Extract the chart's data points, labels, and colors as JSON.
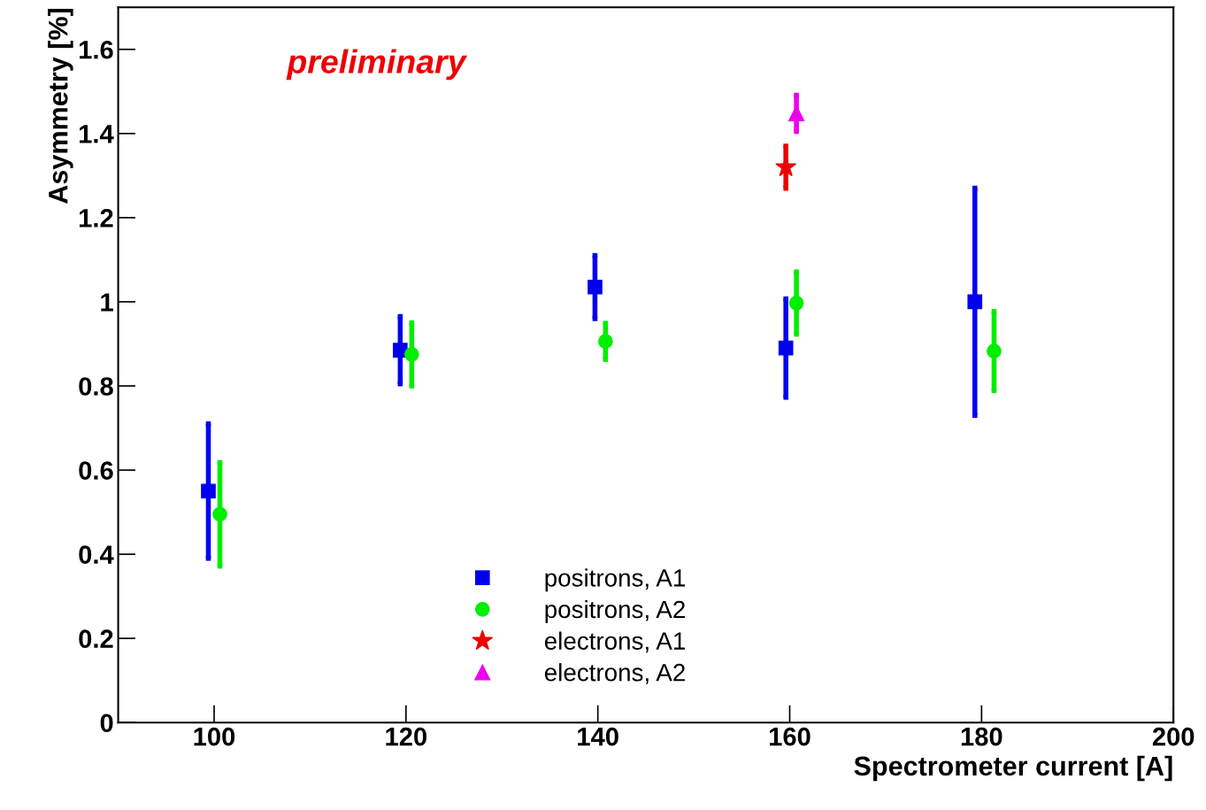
{
  "chart_data": {
    "type": "scatter",
    "xlabel": "Spectrometer current [A]",
    "ylabel": "Asymmetry [%]",
    "annotations": [
      "preliminary"
    ],
    "xlim": [
      90,
      200
    ],
    "ylim": [
      0,
      1.7
    ],
    "xticks": [
      100,
      120,
      140,
      160,
      180,
      200
    ],
    "yticks": [
      0,
      0.2,
      0.4,
      0.6,
      0.8,
      1,
      1.2,
      1.4,
      1.6
    ],
    "grid": false,
    "legend": "bottom",
    "series": [
      {
        "name": "positrons, A1",
        "color": "#0000ee",
        "marker": "square",
        "x": [
          99.4,
          119.4,
          139.7,
          159.6,
          179.3
        ],
        "values": [
          0.55,
          0.885,
          1.035,
          0.89,
          1.0
        ],
        "errors": [
          0.16,
          0.08,
          0.075,
          0.117,
          0.27
        ]
      },
      {
        "name": "positrons, A2",
        "color": "#00ee00",
        "marker": "circle",
        "x": [
          100.6,
          120.6,
          140.8,
          160.7,
          181.3
        ],
        "values": [
          0.495,
          0.875,
          0.906,
          0.997,
          0.883
        ],
        "errors": [
          0.123,
          0.075,
          0.043,
          0.074,
          0.094
        ]
      },
      {
        "name": "electrons, A1",
        "color": "#ee0000",
        "marker": "star",
        "x": [
          159.6
        ],
        "values": [
          1.32
        ],
        "errors": [
          0.05
        ]
      },
      {
        "name": "electrons, A2",
        "color": "#ee00ee",
        "marker": "triangle",
        "x": [
          160.7
        ],
        "values": [
          1.448
        ],
        "errors": [
          0.043
        ]
      }
    ]
  }
}
